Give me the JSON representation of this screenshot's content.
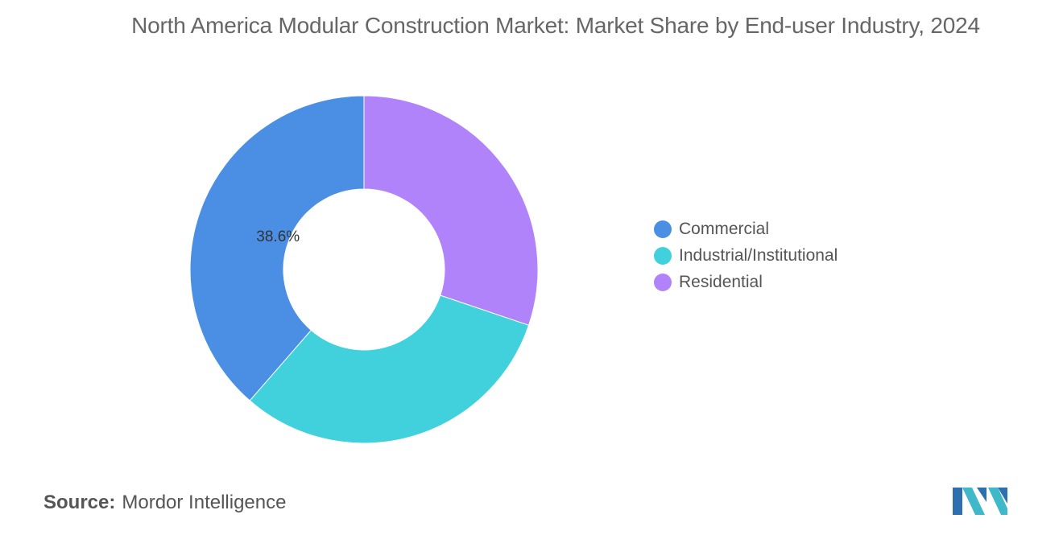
{
  "chart_data": {
    "type": "pie",
    "donut": true,
    "title": "North America Modular Construction Market: Market Share by End-user Industry, 2024",
    "slices": [
      {
        "name": "Residential",
        "value": 30.2,
        "color": "#B083FB",
        "label": ""
      },
      {
        "name": "Industrial/Institutional",
        "value": 31.2,
        "color": "#40D1DC",
        "label": ""
      },
      {
        "name": "Commercial",
        "value": 38.6,
        "color": "#4A8FE3",
        "label": "38.6%"
      }
    ],
    "legend": {
      "position": "right",
      "items": [
        {
          "label": "Commercial",
          "color": "#4A8FE3"
        },
        {
          "label": "Industrial/Institutional",
          "color": "#40D1DC"
        },
        {
          "label": "Residential",
          "color": "#B083FB"
        }
      ]
    }
  },
  "source": {
    "key": "Source:",
    "value": "Mordor Intelligence"
  },
  "logo": {
    "icon": "mordor-intelligence-logo",
    "colors": [
      "#2E6FAF",
      "#3FB8C9"
    ]
  }
}
